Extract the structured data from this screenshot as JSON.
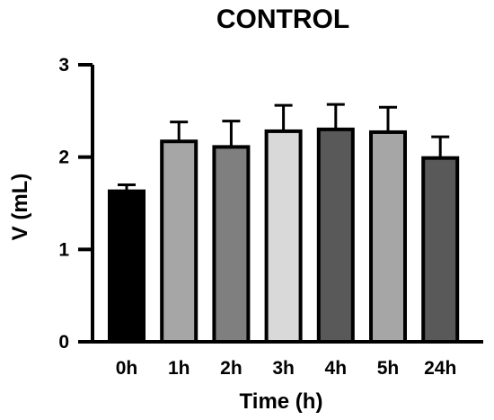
{
  "chart_data": {
    "type": "bar",
    "title": "CONTROL",
    "xlabel": "Time (h)",
    "ylabel": "V (mL)",
    "ylim": [
      0,
      3
    ],
    "yticks": [
      "0",
      "1",
      "2",
      "3"
    ],
    "categories": [
      "0h",
      "1h",
      "2h",
      "3h",
      "4h",
      "5h",
      "24h"
    ],
    "values": [
      1.63,
      2.17,
      2.11,
      2.28,
      2.3,
      2.27,
      1.99
    ],
    "error_upper": [
      0.07,
      0.21,
      0.28,
      0.28,
      0.27,
      0.27,
      0.23
    ],
    "bar_colors": [
      "#000000",
      "#a6a6a6",
      "#7f7f7f",
      "#d9d9d9",
      "#595959",
      "#a6a6a6",
      "#595959"
    ],
    "grid": false,
    "legend": "none"
  }
}
